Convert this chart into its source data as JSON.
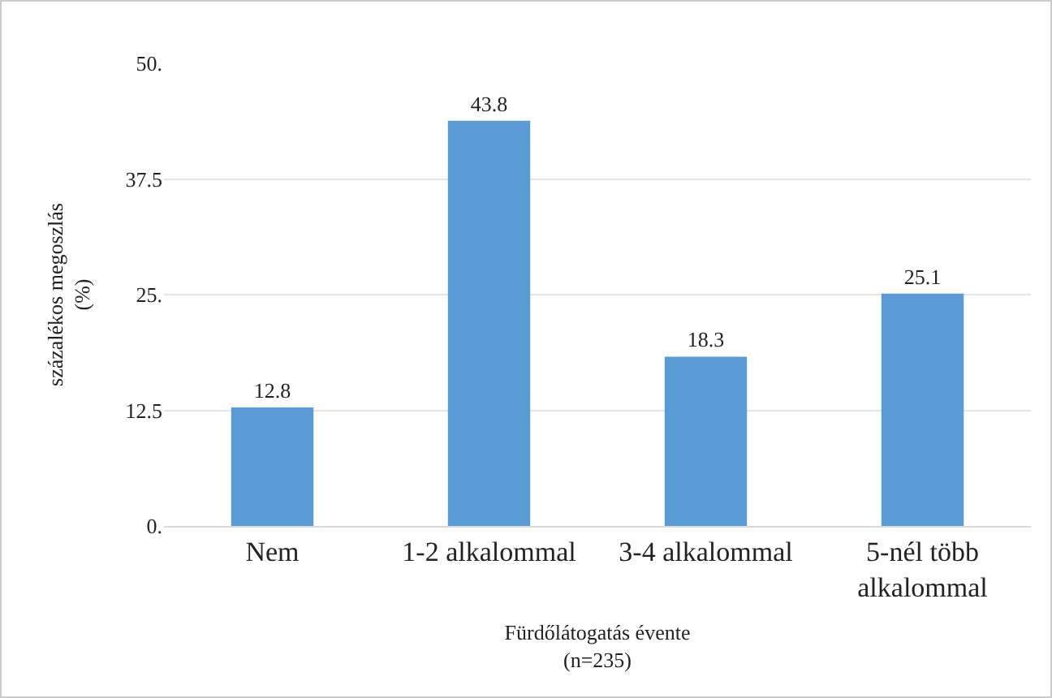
{
  "chart_data": {
    "type": "bar",
    "xlabel": "Fürdőlátogatás évente\n(n=235)",
    "ylabel": "százalékos megoszlás (%)",
    "categories": [
      "Nem",
      "1-2 alkalommal",
      "3-4 alkalommal",
      "5-nél több alkalommal"
    ],
    "values": [
      12.8,
      43.8,
      18.3,
      25.1
    ],
    "color": "#5b9bd5",
    "ylim": [
      0,
      50
    ],
    "yticks": [
      {
        "value": 0,
        "label": "0."
      },
      12.5,
      {
        "value": 25,
        "label": "25."
      },
      37.5,
      {
        "value": 50,
        "label": "50."
      }
    ],
    "grid": "y",
    "data_labels": true
  }
}
